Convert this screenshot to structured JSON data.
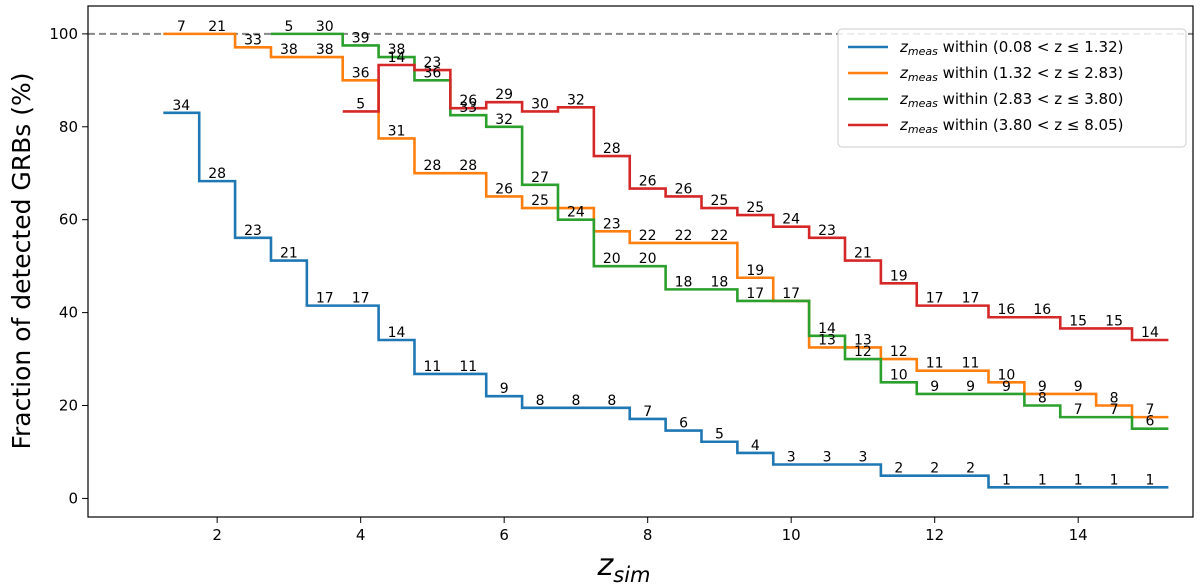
{
  "chart_data": {
    "type": "line",
    "step": "post",
    "xlabel": "z",
    "xlabel_sub": "sim",
    "ylabel": "Fraction of detected GRBs (%)",
    "xlim": [
      0.2,
      15.6
    ],
    "ylim": [
      -4,
      106
    ],
    "xticks": [
      2,
      4,
      6,
      8,
      10,
      12,
      14
    ],
    "yticks": [
      0,
      20,
      40,
      60,
      80,
      100
    ],
    "grid": false,
    "legend_position": "top-right",
    "reference_line": {
      "y": 100,
      "style": "dashed",
      "color": "#888888"
    },
    "series": [
      {
        "name": "z_meas within (0.08 < z ≤ 1.32)",
        "legend_prefix": "z",
        "legend_sub": "meas",
        "legend_suffix": " within (0.08 < z ≤ 1.32)",
        "color": "#1f77b4",
        "x": [
          1.25,
          1.75,
          2.25,
          2.75,
          3.25,
          3.75,
          4.25,
          4.75,
          5.25,
          5.75,
          6.25,
          6.75,
          7.25,
          7.75,
          8.25,
          8.75,
          9.25,
          9.75,
          10.25,
          10.75,
          11.25,
          11.75,
          12.25,
          12.75,
          13.25,
          13.75,
          14.25,
          14.75,
          15.25
        ],
        "y": [
          83,
          68.3,
          56.1,
          51.2,
          41.5,
          41.5,
          34.1,
          26.8,
          26.8,
          22.0,
          19.5,
          19.5,
          19.5,
          17.1,
          14.6,
          12.2,
          9.8,
          7.3,
          7.3,
          7.3,
          4.9,
          4.9,
          4.9,
          2.4,
          2.4,
          2.4,
          2.4,
          2.4,
          2.4
        ],
        "labels": [
          "34",
          "28",
          "23",
          "21",
          "17",
          "17",
          "14",
          "11",
          "11",
          "9",
          "8",
          "8",
          "8",
          "7",
          "6",
          "5",
          "4",
          "3",
          "3",
          "3",
          "2",
          "2",
          "2",
          "1",
          "1",
          "1",
          "1",
          "1",
          ""
        ]
      },
      {
        "name": "z_meas within (1.32 < z ≤ 2.83)",
        "legend_prefix": "z",
        "legend_sub": "meas",
        "legend_suffix": " within (1.32 < z ≤ 2.83)",
        "color": "#ff7f0e",
        "x": [
          1.25,
          1.75,
          2.25,
          2.75,
          3.25,
          3.75,
          4.25,
          4.75,
          5.25,
          5.75,
          6.25,
          6.75,
          7.25,
          7.75,
          8.25,
          8.75,
          9.25,
          9.75,
          10.25,
          10.75,
          11.25,
          11.75,
          12.25,
          12.75,
          13.25,
          13.75,
          14.25,
          14.75,
          15.25
        ],
        "y": [
          100,
          100,
          97.1,
          95.0,
          95.0,
          90.0,
          77.5,
          70.0,
          70.0,
          65.0,
          62.5,
          62.5,
          57.5,
          55.0,
          55.0,
          55.0,
          47.5,
          42.5,
          32.5,
          32.5,
          30.0,
          27.5,
          27.5,
          25.0,
          22.5,
          22.5,
          20.0,
          17.5,
          17.5
        ],
        "labels": [
          "7",
          "21",
          "33",
          "38",
          "38",
          "36",
          "31",
          "28",
          "28",
          "26",
          "25",
          "",
          "23",
          "22",
          "22",
          "22",
          "19",
          "",
          "13",
          "13",
          "12",
          "11",
          "11",
          "10",
          "9",
          "9",
          "8",
          "7",
          ""
        ]
      },
      {
        "name": "z_meas within (2.83 < z ≤ 3.80)",
        "legend_prefix": "z",
        "legend_sub": "meas",
        "legend_suffix": " within (2.83 < z ≤ 3.80)",
        "color": "#2ca02c",
        "x": [
          2.75,
          3.25,
          3.75,
          4.25,
          4.75,
          5.25,
          5.75,
          6.25,
          6.75,
          7.25,
          7.75,
          8.25,
          8.75,
          9.25,
          9.75,
          10.25,
          10.75,
          11.25,
          11.75,
          12.25,
          12.75,
          13.25,
          13.75,
          14.25,
          14.75,
          15.25
        ],
        "y": [
          100,
          100,
          97.5,
          95.0,
          90.0,
          82.5,
          80.0,
          67.5,
          60.0,
          50.0,
          50.0,
          45.0,
          45.0,
          42.5,
          42.5,
          35.0,
          30.0,
          25.0,
          22.5,
          22.5,
          22.5,
          20.0,
          17.5,
          17.5,
          15.0,
          15.0
        ],
        "labels": [
          "5",
          "30",
          "39",
          "38",
          "36",
          "33",
          "32",
          "27",
          "24",
          "20",
          "20",
          "18",
          "18",
          "17",
          "17",
          "14",
          "12",
          "10",
          "9",
          "9",
          "9",
          "8",
          "7",
          "7",
          "6",
          ""
        ]
      },
      {
        "name": "z_meas within (3.80 < z ≤ 8.05)",
        "legend_prefix": "z",
        "legend_sub": "meas",
        "legend_suffix": " within (3.80 < z ≤ 8.05)",
        "color": "#d62728",
        "x": [
          3.75,
          4.25,
          4.75,
          5.25,
          5.75,
          6.25,
          6.75,
          7.25,
          7.75,
          8.25,
          8.75,
          9.25,
          9.75,
          10.25,
          10.75,
          11.25,
          11.75,
          12.25,
          12.75,
          13.25,
          13.75,
          14.25,
          14.75,
          15.25
        ],
        "y": [
          83.3,
          93.3,
          92.2,
          84.0,
          85.3,
          83.3,
          84.2,
          73.7,
          66.7,
          65.0,
          62.5,
          61.0,
          58.5,
          56.1,
          51.2,
          46.3,
          41.5,
          41.5,
          39.0,
          39.0,
          36.6,
          36.6,
          34.1,
          34.1
        ],
        "labels": [
          "5",
          "14",
          "23",
          "26",
          "29",
          "30",
          "32",
          "28",
          "26",
          "26",
          "25",
          "25",
          "24",
          "23",
          "21",
          "19",
          "17",
          "17",
          "16",
          "16",
          "15",
          "15",
          "14",
          ""
        ]
      }
    ]
  }
}
